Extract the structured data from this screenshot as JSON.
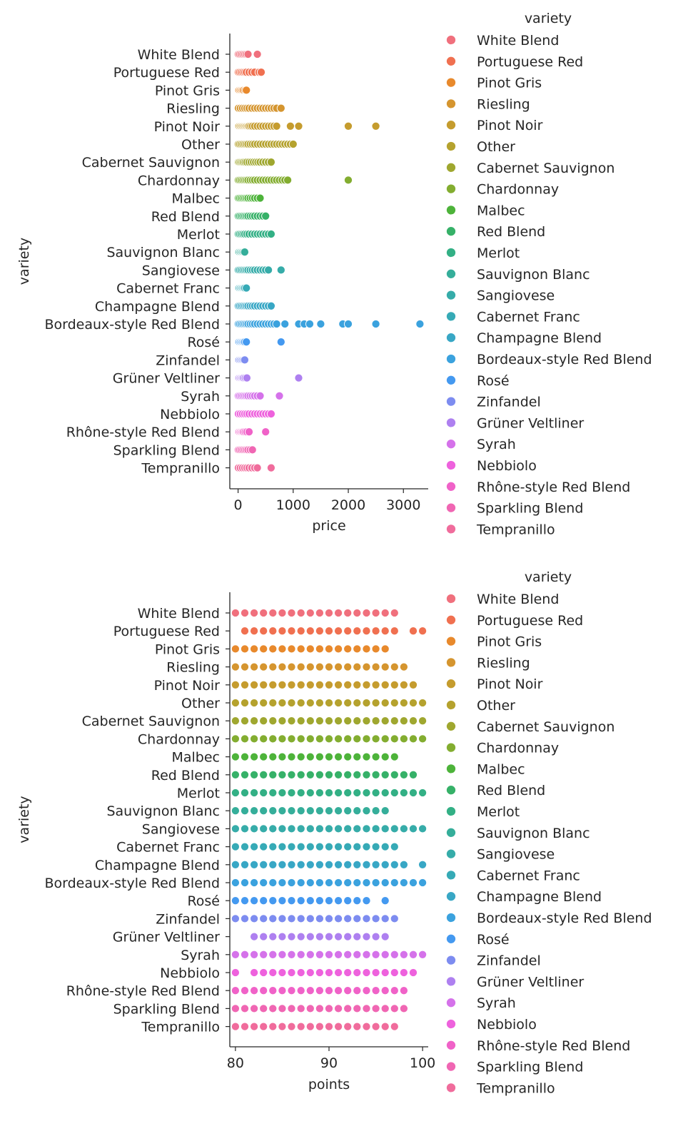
{
  "colors": [
    "#f0707d",
    "#f07050",
    "#e8892c",
    "#d5952f",
    "#c59c2e",
    "#b5a22e",
    "#9fa72f",
    "#83ad30",
    "#4db33a",
    "#36b168",
    "#33b085",
    "#35ae9a",
    "#36aca9",
    "#36aab6",
    "#38a7c5",
    "#3ba2de",
    "#4499f0",
    "#7d8cf0",
    "#ae80f0",
    "#d572ea",
    "#ee62dd",
    "#f062c8",
    "#f066b3",
    "#f06c9c"
  ],
  "chart_data": [
    {
      "type": "scatter",
      "xlabel": "price",
      "ylabel": "variety",
      "xlim": [
        -150,
        3450
      ],
      "xticks": [
        0,
        1000,
        2000,
        3000
      ],
      "categories": [
        "White Blend",
        "Portuguese Red",
        "Pinot Gris",
        "Riesling",
        "Pinot Noir",
        "Other",
        "Cabernet Sauvignon",
        "Chardonnay",
        "Malbec",
        "Red Blend",
        "Merlot",
        "Sauvignon Blanc",
        "Sangiovese",
        "Cabernet Franc",
        "Champagne Blend",
        "Bordeaux-style Red Blend",
        "Rosé",
        "Zinfandel",
        "Grüner Veltliner",
        "Syrah",
        "Nebbiolo",
        "Rhône-style Red Blend",
        "Sparkling Blend",
        "Tempranillo"
      ],
      "legend_title": "variety",
      "legend_placement": "right",
      "series_points": [
        [
          5,
          30,
          60,
          90,
          120,
          150,
          180,
          350
        ],
        [
          5,
          30,
          60,
          90,
          120,
          150,
          200,
          250,
          300,
          380,
          420
        ],
        [
          5,
          20,
          40,
          60,
          80,
          100,
          130,
          150
        ],
        [
          5,
          40,
          80,
          120,
          160,
          200,
          250,
          300,
          350,
          400,
          450,
          500,
          550,
          600,
          650,
          700,
          780
        ],
        [
          5,
          20,
          40,
          60,
          80,
          100,
          120,
          140,
          160,
          180,
          200,
          230,
          260,
          300,
          350,
          400,
          450,
          500,
          550,
          600,
          650,
          700,
          950,
          1100,
          2000,
          2500
        ],
        [
          5,
          30,
          60,
          90,
          120,
          150,
          180,
          220,
          260,
          300,
          350,
          400,
          450,
          500,
          550,
          600,
          650,
          700,
          750,
          800,
          850,
          900,
          950,
          1000
        ],
        [
          5,
          25,
          50,
          75,
          100,
          130,
          160,
          200,
          240,
          280,
          320,
          360,
          400,
          450,
          500,
          550,
          600
        ],
        [
          5,
          30,
          60,
          90,
          120,
          150,
          180,
          220,
          260,
          300,
          350,
          400,
          450,
          500,
          550,
          600,
          650,
          700,
          750,
          800,
          850,
          900,
          2000
        ],
        [
          5,
          30,
          60,
          90,
          120,
          150,
          180,
          220,
          260,
          300,
          350,
          400
        ],
        [
          5,
          30,
          60,
          90,
          120,
          150,
          180,
          220,
          260,
          300,
          350,
          400,
          450,
          500
        ],
        [
          5,
          30,
          60,
          90,
          120,
          160,
          200,
          250,
          300,
          350,
          400,
          450,
          500,
          550,
          600
        ],
        [
          5,
          20,
          40,
          60,
          80,
          100,
          120
        ],
        [
          5,
          30,
          60,
          90,
          120,
          150,
          180,
          220,
          260,
          300,
          350,
          400,
          450,
          500,
          550,
          780
        ],
        [
          5,
          20,
          40,
          60,
          80,
          100,
          120,
          150
        ],
        [
          5,
          30,
          60,
          90,
          120,
          150,
          180,
          220,
          260,
          300,
          350,
          400,
          450,
          500,
          550,
          600
        ],
        [
          5,
          30,
          60,
          90,
          120,
          150,
          180,
          220,
          260,
          300,
          350,
          400,
          450,
          500,
          550,
          600,
          650,
          700,
          850,
          1100,
          1200,
          1300,
          1500,
          1900,
          2000,
          2500,
          3300
        ],
        [
          5,
          20,
          40,
          60,
          80,
          100,
          120,
          150,
          780
        ],
        [
          5,
          20,
          40,
          60,
          80,
          100,
          120
        ],
        [
          5,
          20,
          40,
          60,
          80,
          100,
          130,
          160,
          1100
        ],
        [
          5,
          30,
          60,
          90,
          120,
          150,
          180,
          220,
          260,
          300,
          350,
          400,
          750
        ],
        [
          5,
          40,
          80,
          120,
          160,
          200,
          250,
          300,
          350,
          400,
          450,
          500,
          550,
          600
        ],
        [
          5,
          20,
          40,
          60,
          80,
          100,
          130,
          160,
          200,
          500
        ],
        [
          5,
          30,
          60,
          90,
          120,
          150,
          180,
          220,
          260
        ],
        [
          5,
          40,
          80,
          120,
          160,
          200,
          250,
          300,
          350,
          600
        ]
      ]
    },
    {
      "type": "scatter",
      "xlabel": "points",
      "ylabel": "variety",
      "xlim": [
        79.4,
        100.6
      ],
      "xticks": [
        80,
        90,
        100
      ],
      "categories": [
        "White Blend",
        "Portuguese Red",
        "Pinot Gris",
        "Riesling",
        "Pinot Noir",
        "Other",
        "Cabernet Sauvignon",
        "Chardonnay",
        "Malbec",
        "Red Blend",
        "Merlot",
        "Sauvignon Blanc",
        "Sangiovese",
        "Cabernet Franc",
        "Champagne Blend",
        "Bordeaux-style Red Blend",
        "Rosé",
        "Zinfandel",
        "Grüner Veltliner",
        "Syrah",
        "Nebbiolo",
        "Rhône-style Red Blend",
        "Sparkling Blend",
        "Tempranillo"
      ],
      "legend_title": "variety",
      "legend_placement": "right",
      "series_points": [
        [
          80,
          81,
          82,
          83,
          84,
          85,
          86,
          87,
          88,
          89,
          90,
          91,
          92,
          93,
          94,
          95,
          96,
          97
        ],
        [
          81,
          82,
          83,
          84,
          85,
          86,
          87,
          88,
          89,
          90,
          91,
          92,
          93,
          94,
          95,
          96,
          97,
          99,
          100
        ],
        [
          80,
          81,
          82,
          83,
          84,
          85,
          86,
          87,
          88,
          89,
          90,
          91,
          92,
          93,
          94,
          95,
          96
        ],
        [
          80,
          81,
          82,
          83,
          84,
          85,
          86,
          87,
          88,
          89,
          90,
          91,
          92,
          93,
          94,
          95,
          96,
          97,
          98
        ],
        [
          80,
          81,
          82,
          83,
          84,
          85,
          86,
          87,
          88,
          89,
          90,
          91,
          92,
          93,
          94,
          95,
          96,
          97,
          98,
          99
        ],
        [
          80,
          81,
          82,
          83,
          84,
          85,
          86,
          87,
          88,
          89,
          90,
          91,
          92,
          93,
          94,
          95,
          96,
          97,
          98,
          99,
          100
        ],
        [
          80,
          81,
          82,
          83,
          84,
          85,
          86,
          87,
          88,
          89,
          90,
          91,
          92,
          93,
          94,
          95,
          96,
          97,
          98,
          99,
          100
        ],
        [
          80,
          81,
          82,
          83,
          84,
          85,
          86,
          87,
          88,
          89,
          90,
          91,
          92,
          93,
          94,
          95,
          96,
          97,
          98,
          99,
          100
        ],
        [
          80,
          81,
          82,
          83,
          84,
          85,
          86,
          87,
          88,
          89,
          90,
          91,
          92,
          93,
          94,
          95,
          96,
          97
        ],
        [
          80,
          81,
          82,
          83,
          84,
          85,
          86,
          87,
          88,
          89,
          90,
          91,
          92,
          93,
          94,
          95,
          96,
          97,
          98,
          99
        ],
        [
          80,
          81,
          82,
          83,
          84,
          85,
          86,
          87,
          88,
          89,
          90,
          91,
          92,
          93,
          94,
          95,
          96,
          97,
          98,
          99,
          100
        ],
        [
          80,
          81,
          82,
          83,
          84,
          85,
          86,
          87,
          88,
          89,
          90,
          91,
          92,
          93,
          94,
          95,
          96
        ],
        [
          80,
          81,
          82,
          83,
          84,
          85,
          86,
          87,
          88,
          89,
          90,
          91,
          92,
          93,
          94,
          95,
          96,
          97,
          98,
          99,
          100
        ],
        [
          80,
          81,
          82,
          83,
          84,
          85,
          86,
          87,
          88,
          89,
          90,
          91,
          92,
          93,
          94,
          95,
          96,
          97
        ],
        [
          80,
          81,
          82,
          83,
          84,
          85,
          86,
          87,
          88,
          89,
          90,
          91,
          92,
          93,
          94,
          95,
          96,
          97,
          98,
          100
        ],
        [
          80,
          81,
          82,
          83,
          84,
          85,
          86,
          87,
          88,
          89,
          90,
          91,
          92,
          93,
          94,
          95,
          96,
          97,
          98,
          99,
          100
        ],
        [
          80,
          81,
          82,
          83,
          84,
          85,
          86,
          87,
          88,
          89,
          90,
          91,
          92,
          93,
          94,
          96
        ],
        [
          80,
          81,
          82,
          83,
          84,
          85,
          86,
          87,
          88,
          89,
          90,
          91,
          92,
          93,
          94,
          95,
          96,
          97
        ],
        [
          82,
          83,
          84,
          85,
          86,
          87,
          88,
          89,
          90,
          91,
          92,
          93,
          94,
          95,
          96
        ],
        [
          80,
          81,
          82,
          83,
          84,
          85,
          86,
          87,
          88,
          89,
          90,
          91,
          92,
          93,
          94,
          95,
          96,
          97,
          98,
          99,
          100
        ],
        [
          80,
          82,
          83,
          84,
          85,
          86,
          87,
          88,
          89,
          90,
          91,
          92,
          93,
          94,
          95,
          96,
          97,
          98,
          99
        ],
        [
          80,
          81,
          82,
          83,
          84,
          85,
          86,
          87,
          88,
          89,
          90,
          91,
          92,
          93,
          94,
          95,
          96,
          97,
          98
        ],
        [
          80,
          81,
          82,
          83,
          84,
          85,
          86,
          87,
          88,
          89,
          90,
          91,
          92,
          93,
          94,
          95,
          96,
          97,
          98
        ],
        [
          80,
          81,
          82,
          83,
          84,
          85,
          86,
          87,
          88,
          89,
          90,
          91,
          92,
          93,
          94,
          95,
          96,
          97
        ]
      ]
    }
  ]
}
